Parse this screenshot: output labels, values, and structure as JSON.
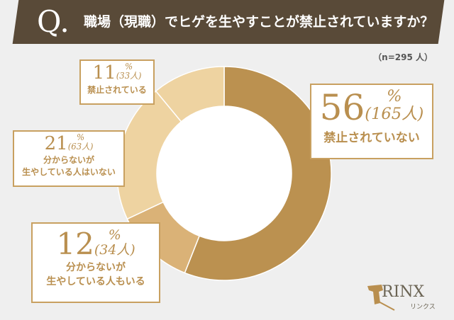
{
  "header": {
    "q_mark": "Q.",
    "question": "職場（現職）でヒゲを生やすことが禁止されていますか？"
  },
  "sample": "（n=295 人）",
  "chart_data": {
    "type": "pie",
    "donut": true,
    "title": "職場（現職）でヒゲを生やすことが禁止されていますか？",
    "start": "top",
    "direction": "clockwise",
    "slices": [
      {
        "label": "禁止されていない",
        "percent": 56,
        "count": "(165人)",
        "color": "#bb9150"
      },
      {
        "label": "分からないが生やしている人もいる",
        "percent": 12,
        "count": "(34人)",
        "color": "#dab277"
      },
      {
        "label": "分からないが生やしている人はいない",
        "percent": 21,
        "count": "(63人)",
        "color": "#eed3a1"
      },
      {
        "label": "禁止されている",
        "percent": 11,
        "count": "(33人)",
        "color": "#eed3a1"
      }
    ],
    "labels": {
      "s0": {
        "pct": "56",
        "line1": "禁止されていない",
        "line2": ""
      },
      "s1": {
        "pct": "12",
        "line1": "分からないが",
        "line2": "生やしている人もいる"
      },
      "s2": {
        "pct": "21",
        "line1": "分からないが",
        "line2": "生やしている人はいない"
      },
      "s3": {
        "pct": "11",
        "line1": "禁止されている",
        "line2": ""
      }
    },
    "pct_sign": "%"
  },
  "logo": {
    "text": "RINX",
    "kana": "リンクス",
    "color": "#b98f4f"
  }
}
